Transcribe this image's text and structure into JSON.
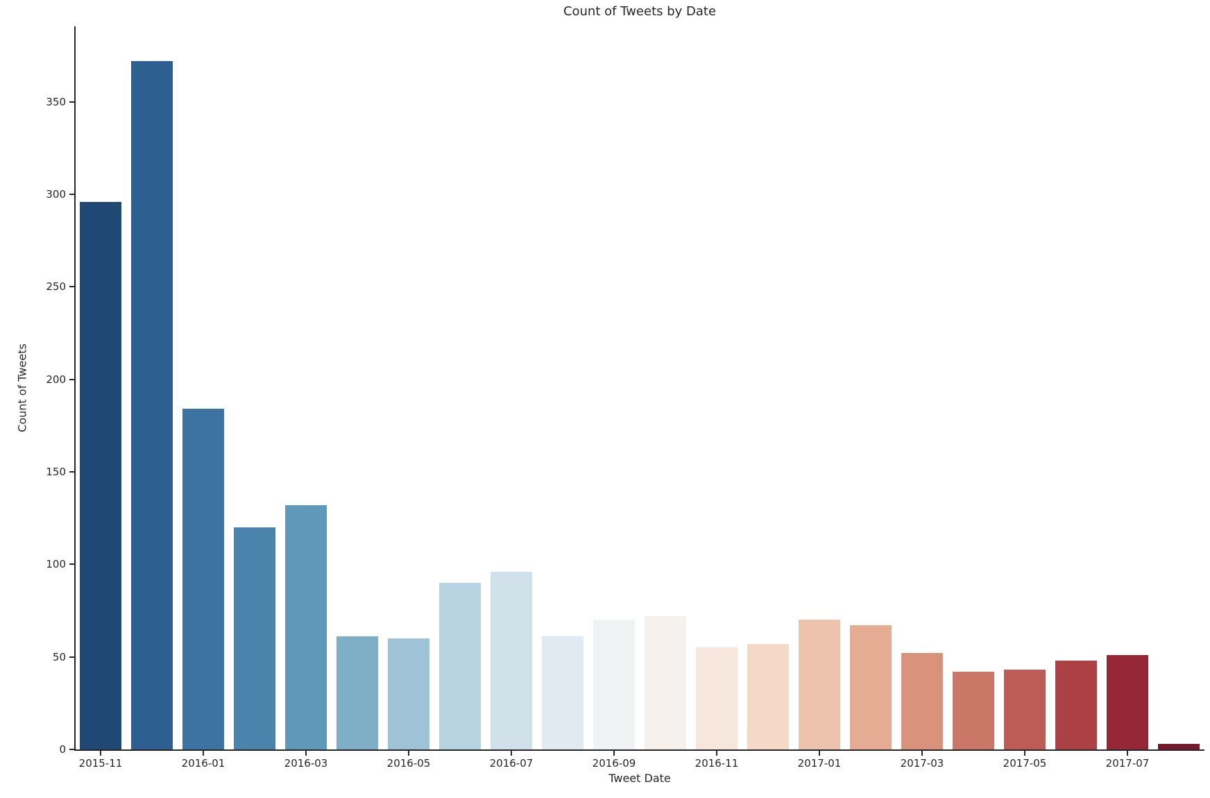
{
  "chart_data": {
    "type": "bar",
    "title": "Count of Tweets by Date",
    "xlabel": "Tweet Date",
    "ylabel": "Count of Tweets",
    "categories": [
      "2015-11",
      "2015-12",
      "2016-01",
      "2016-02",
      "2016-03",
      "2016-04",
      "2016-05",
      "2016-06",
      "2016-07",
      "2016-08",
      "2016-09",
      "2016-10",
      "2016-11",
      "2016-12",
      "2017-01",
      "2017-02",
      "2017-03",
      "2017-04",
      "2017-05",
      "2017-06",
      "2017-07",
      "2017-08"
    ],
    "values": [
      296,
      372,
      184,
      120,
      132,
      61,
      60,
      90,
      96,
      61,
      70,
      72,
      55,
      57,
      70,
      67,
      52,
      42,
      43,
      48,
      51,
      3
    ],
    "bar_colors": [
      "#1f4874",
      "#2e5f91",
      "#3c73a2",
      "#4a84ad",
      "#6098b9",
      "#7faec7",
      "#9ec3d6",
      "#b7d2e0",
      "#d0e1ea",
      "#e1eaf0",
      "#f0f3f4",
      "#f7f1ee",
      "#f7e6dc",
      "#f5d8c8",
      "#edc3ae",
      "#e6ac93",
      "#d9927c",
      "#ca7767",
      "#bc5c55",
      "#ab4045",
      "#962736",
      "#781a2d"
    ],
    "palette": "RdBu_r (desaturated)",
    "x_tick_labels": [
      "2015-11",
      "2016-01",
      "2016-03",
      "2016-05",
      "2016-07",
      "2016-09",
      "2016-11",
      "2017-01",
      "2017-03",
      "2017-05",
      "2017-07"
    ],
    "x_tick_every": 2,
    "y_ticks": [
      0,
      50,
      100,
      150,
      200,
      250,
      300,
      350
    ],
    "ylim": [
      0,
      390.7
    ],
    "bar_width_fraction": 0.8,
    "grid": false,
    "legend": null
  },
  "colors": {
    "background": "#ffffff",
    "text": "#262626",
    "axis": "#262626"
  }
}
